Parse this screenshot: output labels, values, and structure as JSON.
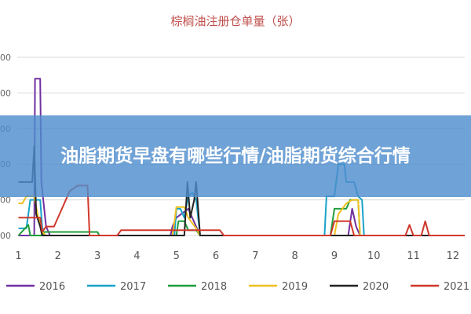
{
  "banner": {
    "text": "油脂期货早盘有哪些行情/油脂期货综合行情"
  },
  "chart_data": {
    "type": "line",
    "title": "棕榈油注册仓单量（张）",
    "xlabel": "",
    "ylabel": "",
    "x_ticks": [
      1,
      2,
      3,
      4,
      5,
      6,
      7,
      8,
      9,
      10,
      11,
      12
    ],
    "xlim": [
      0.97,
      12.3
    ],
    "ylim": [
      0,
      100
    ],
    "y_tick_values": [
      0,
      20,
      40,
      60,
      80,
      100
    ],
    "y_tick_labels": [
      "00",
      "00",
      "00",
      "00",
      "00",
      "00"
    ],
    "grid": true,
    "legend_position": "bottom",
    "series": [
      {
        "name": "2016",
        "color": "#7030a0",
        "points": [
          [
            1.0,
            0
          ],
          [
            1.3,
            0
          ],
          [
            1.4,
            0
          ],
          [
            1.42,
            88
          ],
          [
            1.55,
            88
          ],
          [
            1.58,
            30
          ],
          [
            1.7,
            5
          ],
          [
            1.8,
            0
          ],
          [
            4.85,
            0
          ],
          [
            4.9,
            5
          ],
          [
            5.0,
            10
          ],
          [
            5.3,
            15
          ],
          [
            5.5,
            5
          ],
          [
            5.6,
            0
          ],
          [
            9.35,
            0
          ],
          [
            9.45,
            15
          ],
          [
            9.55,
            5
          ],
          [
            9.65,
            0
          ],
          [
            12.3,
            0
          ]
        ]
      },
      {
        "name": "2017",
        "color": "#17a2c9",
        "points": [
          [
            1.0,
            4
          ],
          [
            1.2,
            4
          ],
          [
            1.3,
            20
          ],
          [
            1.55,
            20
          ],
          [
            1.6,
            5
          ],
          [
            1.65,
            0
          ],
          [
            4.95,
            0
          ],
          [
            5.0,
            15
          ],
          [
            5.1,
            15
          ],
          [
            5.2,
            10
          ],
          [
            5.3,
            22
          ],
          [
            5.4,
            24
          ],
          [
            5.5,
            20
          ],
          [
            5.6,
            0
          ],
          [
            8.75,
            0
          ],
          [
            8.8,
            22
          ],
          [
            9.0,
            22
          ],
          [
            9.1,
            40
          ],
          [
            9.25,
            40
          ],
          [
            9.3,
            30
          ],
          [
            9.5,
            30
          ],
          [
            9.6,
            22
          ],
          [
            9.7,
            20
          ],
          [
            9.75,
            0
          ],
          [
            12.3,
            0
          ]
        ]
      },
      {
        "name": "2018",
        "color": "#1f9e3a",
        "points": [
          [
            1.0,
            0
          ],
          [
            1.25,
            6
          ],
          [
            1.3,
            0
          ],
          [
            1.6,
            0
          ],
          [
            1.65,
            2
          ],
          [
            3.0,
            2
          ],
          [
            3.05,
            0
          ],
          [
            5.0,
            0
          ],
          [
            5.05,
            8
          ],
          [
            5.2,
            8
          ],
          [
            5.3,
            3
          ],
          [
            5.5,
            3
          ],
          [
            5.6,
            0
          ],
          [
            8.9,
            0
          ],
          [
            9.0,
            15
          ],
          [
            9.3,
            15
          ],
          [
            9.4,
            20
          ],
          [
            9.6,
            20
          ],
          [
            9.65,
            0
          ],
          [
            12.3,
            0
          ]
        ]
      },
      {
        "name": "2019",
        "color": "#f0c020",
        "points": [
          [
            1.0,
            18
          ],
          [
            1.1,
            18
          ],
          [
            1.2,
            22
          ],
          [
            1.4,
            22
          ],
          [
            1.5,
            10
          ],
          [
            1.6,
            2
          ],
          [
            1.7,
            0
          ],
          [
            4.9,
            0
          ],
          [
            5.0,
            16
          ],
          [
            5.2,
            16
          ],
          [
            5.3,
            10
          ],
          [
            5.5,
            4
          ],
          [
            5.6,
            0
          ],
          [
            9.0,
            0
          ],
          [
            9.1,
            12
          ],
          [
            9.3,
            18
          ],
          [
            9.45,
            20
          ],
          [
            9.6,
            20
          ],
          [
            9.65,
            0
          ],
          [
            12.3,
            0
          ]
        ]
      },
      {
        "name": "2020",
        "color": "#222222",
        "points": [
          [
            1.0,
            30
          ],
          [
            1.35,
            30
          ],
          [
            1.4,
            50
          ],
          [
            1.45,
            12
          ],
          [
            1.55,
            5
          ],
          [
            1.6,
            0
          ],
          [
            5.2,
            0
          ],
          [
            5.28,
            30
          ],
          [
            5.35,
            10
          ],
          [
            5.45,
            20
          ],
          [
            5.5,
            30
          ],
          [
            5.6,
            0
          ],
          [
            12.3,
            0
          ]
        ]
      },
      {
        "name": "2021",
        "color": "#d0382b",
        "points": [
          [
            1.0,
            10
          ],
          [
            1.55,
            10
          ],
          [
            1.6,
            2
          ],
          [
            1.7,
            5
          ],
          [
            1.9,
            5
          ],
          [
            2.3,
            25
          ],
          [
            2.5,
            28
          ],
          [
            2.75,
            28
          ],
          [
            2.8,
            0
          ],
          [
            3.5,
            0
          ],
          [
            3.6,
            3
          ],
          [
            6.1,
            3
          ],
          [
            6.2,
            0
          ],
          [
            8.9,
            0
          ],
          [
            9.0,
            8
          ],
          [
            9.4,
            8
          ],
          [
            9.5,
            0
          ],
          [
            10.8,
            0
          ],
          [
            10.9,
            6
          ],
          [
            11.0,
            0
          ],
          [
            11.2,
            0
          ],
          [
            11.3,
            8
          ],
          [
            11.4,
            0
          ],
          [
            12.3,
            0
          ]
        ]
      }
    ]
  }
}
